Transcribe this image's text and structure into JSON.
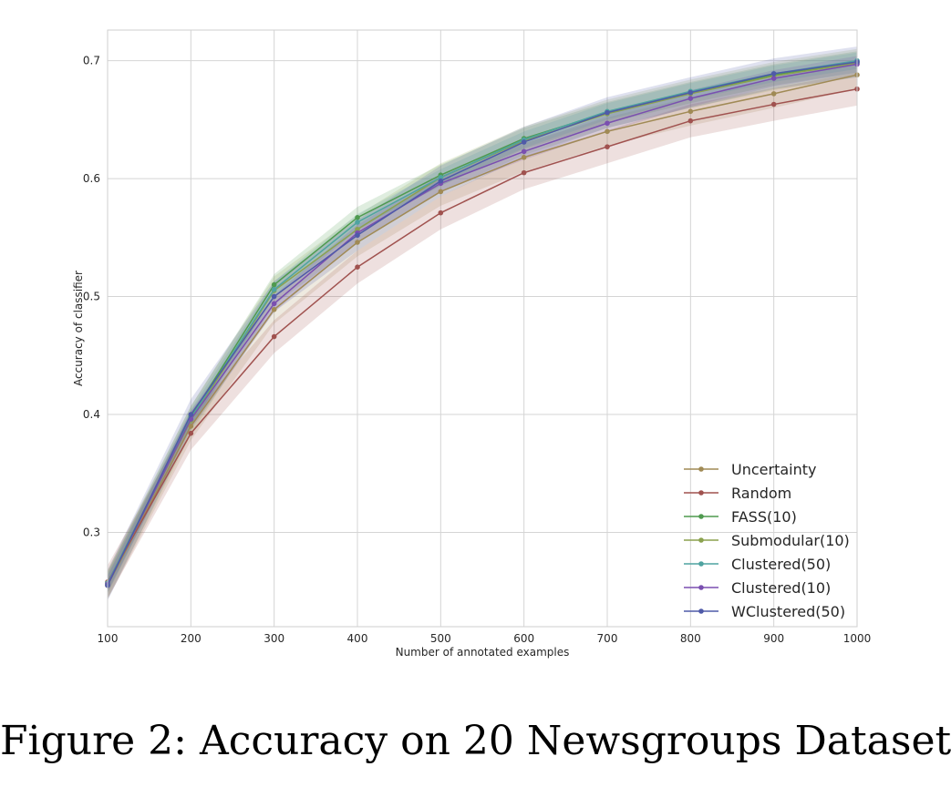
{
  "caption": "Figure 2: Accuracy on 20 Newsgroups Dataset",
  "chart_data": {
    "type": "line",
    "xlabel": "Number of annotated examples",
    "ylabel": "Accuracy of classifier",
    "xlim": [
      100,
      1000
    ],
    "ylim": [
      0.22,
      0.726
    ],
    "grid": true,
    "legend_position": "bottom-right",
    "x": [
      100,
      200,
      300,
      400,
      500,
      600,
      700,
      800,
      900,
      1000
    ],
    "x_ticks": [
      "100",
      "200",
      "300",
      "400",
      "500",
      "600",
      "700",
      "800",
      "900",
      "1000"
    ],
    "y_ticks": [
      0.3,
      0.4,
      0.5,
      0.6,
      0.7
    ],
    "y_tick_labels": [
      "0.3",
      "0.4",
      "0.5",
      "0.6",
      "0.7"
    ],
    "series": [
      {
        "name": "Uncertainty",
        "color": "#a08a55",
        "band": 0.012,
        "values": [
          0.255,
          0.39,
          0.489,
          0.546,
          0.589,
          0.618,
          0.64,
          0.657,
          0.672,
          0.688
        ]
      },
      {
        "name": "Random",
        "color": "#a0524f",
        "band": 0.014,
        "values": [
          0.258,
          0.384,
          0.466,
          0.525,
          0.571,
          0.605,
          0.627,
          0.649,
          0.663,
          0.676
        ]
      },
      {
        "name": "FASS(10)",
        "color": "#4f9a4f",
        "band": 0.009,
        "values": [
          0.257,
          0.398,
          0.51,
          0.567,
          0.603,
          0.634,
          0.656,
          0.673,
          0.688,
          0.699
        ]
      },
      {
        "name": "Submodular(10)",
        "color": "#8ba24f",
        "band": 0.012,
        "values": [
          0.256,
          0.395,
          0.505,
          0.557,
          0.601,
          0.632,
          0.655,
          0.672,
          0.687,
          0.698
        ]
      },
      {
        "name": "Clustered(50)",
        "color": "#4fa3a0",
        "band": 0.007,
        "values": [
          0.257,
          0.397,
          0.506,
          0.563,
          0.601,
          0.633,
          0.657,
          0.674,
          0.689,
          0.7
        ]
      },
      {
        "name": "Clustered(10)",
        "color": "#7a4fb0",
        "band": 0.007,
        "values": [
          0.256,
          0.396,
          0.494,
          0.554,
          0.596,
          0.623,
          0.647,
          0.668,
          0.685,
          0.697
        ]
      },
      {
        "name": "WClustered(50)",
        "color": "#4f5aa8",
        "band": 0.013,
        "values": [
          0.255,
          0.4,
          0.5,
          0.552,
          0.598,
          0.631,
          0.656,
          0.673,
          0.689,
          0.699
        ]
      }
    ]
  }
}
